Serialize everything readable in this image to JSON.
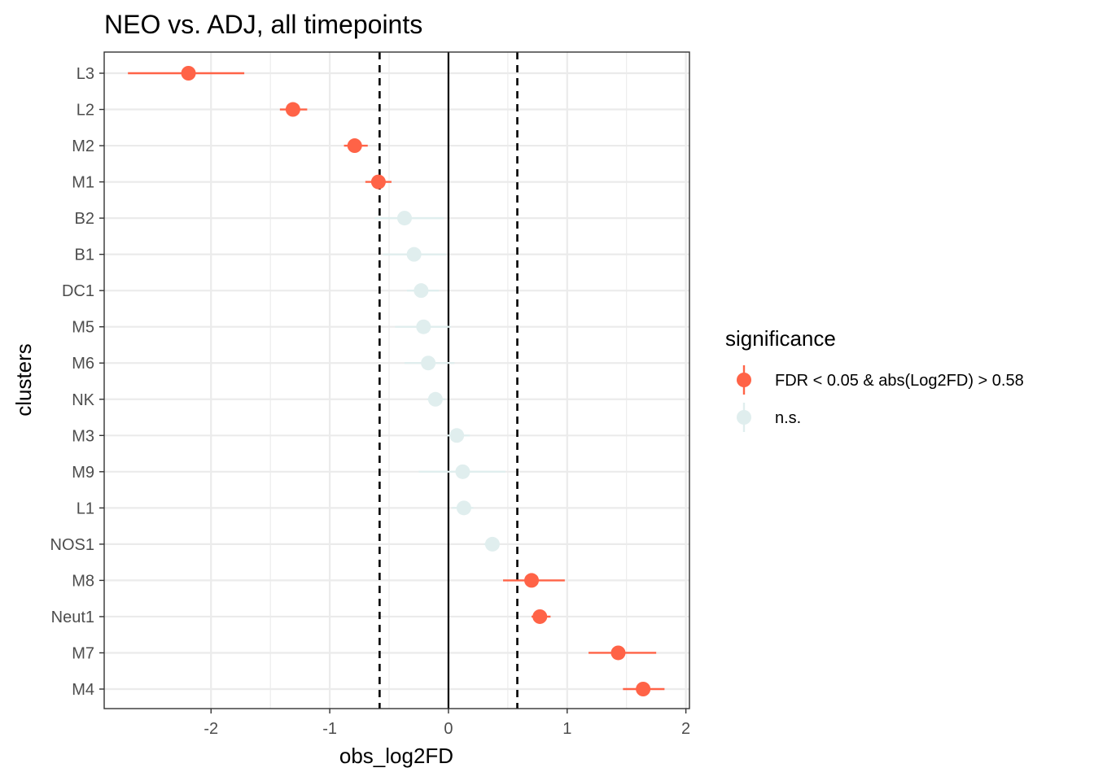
{
  "chart_data": {
    "type": "scatter",
    "title": "NEO vs. ADJ, all timepoints",
    "xlabel": "obs_log2FD",
    "ylabel": "clusters",
    "xlim": [
      -2.9,
      2.03
    ],
    "xticks": [
      -2,
      -1,
      0,
      1,
      2
    ],
    "xtick_labels": [
      "-2",
      "-1",
      "0",
      "1",
      "2"
    ],
    "reference_lines": {
      "solid": [
        0
      ],
      "dashed": [
        -0.58,
        0.58
      ]
    },
    "grid": true,
    "legend": {
      "title": "significance",
      "placement": "right",
      "entries": [
        {
          "label": "FDR < 0.05 & abs(Log2FD) > 0.58",
          "color": "#FF6347"
        },
        {
          "label": "n.s.",
          "color": "#E0EEEE"
        }
      ]
    },
    "points": [
      {
        "cluster": "L3",
        "value": -2.19,
        "lo": -2.7,
        "hi": -1.72,
        "group": 0
      },
      {
        "cluster": "L2",
        "value": -1.31,
        "lo": -1.42,
        "hi": -1.19,
        "group": 0
      },
      {
        "cluster": "M2",
        "value": -0.79,
        "lo": -0.88,
        "hi": -0.68,
        "group": 0
      },
      {
        "cluster": "M1",
        "value": -0.59,
        "lo": -0.7,
        "hi": -0.48,
        "group": 0
      },
      {
        "cluster": "B2",
        "value": -0.37,
        "lo": -0.62,
        "hi": -0.04,
        "group": 1
      },
      {
        "cluster": "B1",
        "value": -0.29,
        "lo": -0.55,
        "hi": -0.02,
        "group": 1
      },
      {
        "cluster": "DC1",
        "value": -0.23,
        "lo": -0.35,
        "hi": -0.08,
        "group": 1
      },
      {
        "cluster": "M5",
        "value": -0.21,
        "lo": -0.45,
        "hi": 0.02,
        "group": 1
      },
      {
        "cluster": "M6",
        "value": -0.17,
        "lo": -0.37,
        "hi": 0.05,
        "group": 1
      },
      {
        "cluster": "NK",
        "value": -0.11,
        "lo": -0.18,
        "hi": -0.03,
        "group": 1
      },
      {
        "cluster": "M3",
        "value": 0.07,
        "lo": -0.01,
        "hi": 0.18,
        "group": 1
      },
      {
        "cluster": "M9",
        "value": 0.12,
        "lo": -0.25,
        "hi": 0.48,
        "group": 1
      },
      {
        "cluster": "L1",
        "value": 0.13,
        "lo": 0.03,
        "hi": 0.21,
        "group": 1
      },
      {
        "cluster": "NOS1",
        "value": 0.37,
        "lo": 0.3,
        "hi": 0.43,
        "group": 1
      },
      {
        "cluster": "M8",
        "value": 0.7,
        "lo": 0.46,
        "hi": 0.98,
        "group": 0
      },
      {
        "cluster": "Neut1",
        "value": 0.77,
        "lo": 0.7,
        "hi": 0.86,
        "group": 0
      },
      {
        "cluster": "M7",
        "value": 1.43,
        "lo": 1.18,
        "hi": 1.75,
        "group": 0
      },
      {
        "cluster": "M4",
        "value": 1.64,
        "lo": 1.47,
        "hi": 1.82,
        "group": 0
      }
    ]
  }
}
